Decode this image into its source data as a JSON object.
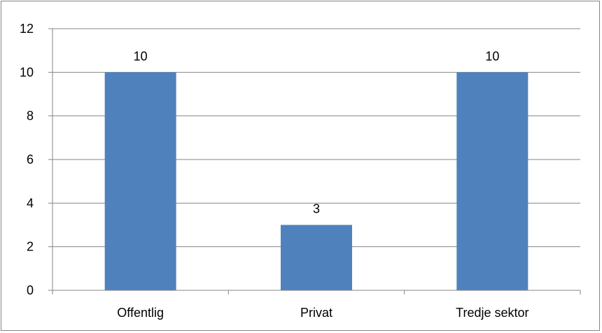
{
  "chart_data": {
    "type": "bar",
    "categories": [
      "Offentlig",
      "Privat",
      "Tredje sektor"
    ],
    "values": [
      10,
      3,
      10
    ],
    "data_labels": [
      "10",
      "3",
      "10"
    ],
    "ylim": [
      0,
      12
    ],
    "yticks": [
      "0",
      "2",
      "4",
      "6",
      "8",
      "10",
      "12"
    ],
    "grid": true,
    "legend": "none",
    "bar_color": "#4F81BD",
    "gridline_color": "#868686"
  }
}
